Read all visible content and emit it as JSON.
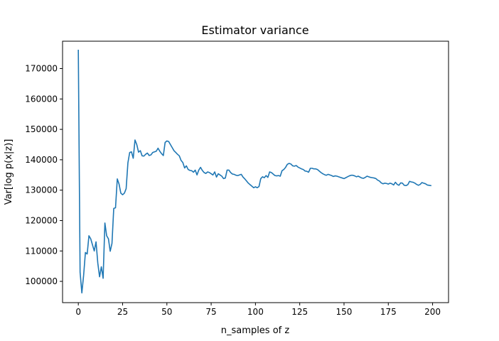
{
  "chart_data": {
    "type": "line",
    "title": "Estimator variance",
    "xlabel": "n_samples of z",
    "ylabel": "Var[log p(x|z)]",
    "xlim": [
      -8.9,
      209
    ],
    "ylim": [
      93000,
      179000
    ],
    "xticks": [
      0,
      25,
      50,
      75,
      100,
      125,
      150,
      175,
      200
    ],
    "yticks": [
      100000,
      110000,
      120000,
      130000,
      140000,
      150000,
      160000,
      170000
    ],
    "xtick_labels": [
      "0",
      "25",
      "50",
      "75",
      "100",
      "125",
      "150",
      "175",
      "200"
    ],
    "ytick_labels": [
      "100000",
      "110000",
      "120000",
      "130000",
      "140000",
      "150000",
      "160000",
      "170000"
    ],
    "grid": false,
    "color": "#1f77b4",
    "series": [
      {
        "x": [
          0,
          1,
          2,
          3,
          4,
          5,
          6,
          7,
          8,
          9,
          10,
          11,
          12,
          13,
          14,
          15,
          16,
          17,
          18,
          19,
          20,
          21,
          22,
          23,
          24,
          25,
          26,
          27,
          28,
          29,
          30,
          31,
          32,
          33,
          34,
          35,
          36,
          37,
          38,
          39,
          40,
          41,
          42,
          43,
          44,
          45,
          46,
          47,
          48,
          49,
          50,
          51,
          52,
          53,
          54,
          55,
          56,
          57,
          58,
          59,
          60,
          61,
          62,
          63,
          64,
          65,
          66,
          67,
          68,
          69,
          70,
          71,
          72,
          73,
          74,
          75,
          76,
          77,
          78,
          79,
          80,
          81,
          82,
          83,
          84,
          85,
          86,
          87,
          88,
          89,
          90,
          91,
          92,
          93,
          94,
          95,
          96,
          97,
          98,
          99,
          100,
          101,
          102,
          103,
          104,
          105,
          106,
          107,
          108,
          109,
          110,
          111,
          112,
          113,
          114,
          115,
          116,
          117,
          118,
          119,
          120,
          121,
          122,
          123,
          124,
          125,
          126,
          127,
          128,
          129,
          130,
          131,
          132,
          133,
          134,
          135,
          136,
          137,
          138,
          139,
          140,
          141,
          142,
          143,
          144,
          145,
          146,
          147,
          148,
          149,
          150,
          151,
          152,
          153,
          154,
          155,
          156,
          157,
          158,
          159,
          160,
          161,
          162,
          163,
          164,
          165,
          166,
          167,
          168,
          169,
          170,
          171,
          172,
          173,
          174,
          175,
          176,
          177,
          178,
          179,
          180,
          181,
          182,
          183,
          184,
          185,
          186,
          187,
          188,
          189,
          190,
          191,
          192,
          193,
          194,
          195,
          196,
          197,
          198,
          199
        ],
        "values": [
          176000,
          103000,
          96200,
          102000,
          109500,
          109000,
          115000,
          114000,
          112000,
          110000,
          113000,
          106000,
          101500,
          104800,
          101000,
          119200,
          115000,
          114000,
          109900,
          112500,
          124000,
          124200,
          133700,
          132000,
          129000,
          128500,
          129000,
          130500,
          139000,
          142400,
          142600,
          140500,
          146500,
          145000,
          142500,
          143000,
          141300,
          141200,
          141800,
          142200,
          141400,
          141600,
          142400,
          142600,
          142800,
          143800,
          142800,
          142000,
          141400,
          145700,
          146200,
          146000,
          145000,
          144000,
          143000,
          142400,
          141800,
          141300,
          139800,
          139100,
          137300,
          138000,
          136800,
          136500,
          136400,
          135900,
          136600,
          135000,
          136600,
          137500,
          136500,
          135800,
          135500,
          136000,
          135800,
          135400,
          135000,
          136000,
          134300,
          135400,
          135000,
          134600,
          133800,
          134000,
          136600,
          136600,
          135800,
          135300,
          135200,
          134900,
          134800,
          135000,
          135200,
          134300,
          133700,
          133000,
          132300,
          131800,
          131300,
          130800,
          131100,
          130800,
          131200,
          133800,
          134400,
          134100,
          134800,
          134200,
          136000,
          135800,
          135300,
          134800,
          134700,
          134800,
          134600,
          136400,
          136800,
          137500,
          138500,
          138800,
          138600,
          138000,
          137900,
          138100,
          137600,
          137300,
          137000,
          136800,
          136300,
          136200,
          135900,
          137200,
          137200,
          137000,
          137000,
          136800,
          136300,
          135800,
          135400,
          135100,
          134900,
          135200,
          135000,
          134800,
          134500,
          134700,
          134600,
          134400,
          134200,
          134000,
          133800,
          134100,
          134400,
          134700,
          134900,
          134900,
          134700,
          134400,
          134600,
          134300,
          134000,
          133900,
          134200,
          134600,
          134400,
          134200,
          134100,
          134000,
          133800,
          133300,
          133000,
          132400,
          132100,
          132300,
          132200,
          132000,
          132300,
          132100,
          131700,
          132600,
          131900,
          131600,
          132400,
          132300,
          131600,
          131500,
          131800,
          132900,
          132700,
          132600,
          132300,
          131900,
          131600,
          131900,
          132500,
          132300,
          132100,
          131700,
          131600,
          131500
        ]
      }
    ]
  }
}
